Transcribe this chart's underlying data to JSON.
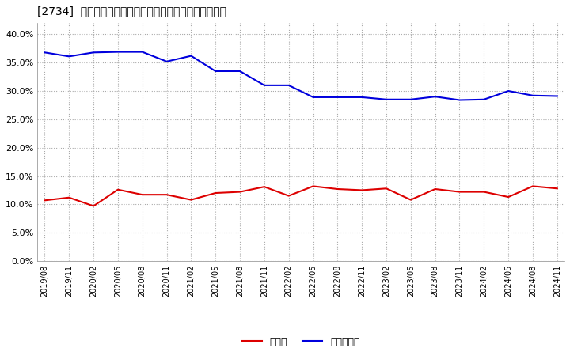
{
  "title": "[2734]  現顔金、有利子負債の総資産に対する比率の推移",
  "legend_labels": [
    "現顔金",
    "有利子負債"
  ],
  "line_colors": [
    "#dd0000",
    "#0000dd"
  ],
  "background_color": "#ffffff",
  "plot_bg_color": "#ffffff",
  "grid_color": "#aaaaaa",
  "dates": [
    "2019/08",
    "2019/11",
    "2020/02",
    "2020/05",
    "2020/08",
    "2020/11",
    "2021/02",
    "2021/05",
    "2021/08",
    "2021/11",
    "2022/02",
    "2022/05",
    "2022/08",
    "2022/11",
    "2023/02",
    "2023/05",
    "2023/08",
    "2023/11",
    "2024/02",
    "2024/05",
    "2024/08",
    "2024/11"
  ],
  "cash": [
    0.107,
    0.112,
    0.097,
    0.126,
    0.117,
    0.117,
    0.108,
    0.12,
    0.122,
    0.131,
    0.115,
    0.132,
    0.127,
    0.125,
    0.128,
    0.108,
    0.127,
    0.122,
    0.122,
    0.113,
    0.132,
    0.128
  ],
  "debt": [
    0.368,
    0.361,
    0.368,
    0.369,
    0.369,
    0.352,
    0.362,
    0.335,
    0.335,
    0.31,
    0.31,
    0.289,
    0.289,
    0.289,
    0.285,
    0.285,
    0.29,
    0.284,
    0.285,
    0.3,
    0.292,
    0.291
  ],
  "ylim": [
    0.0,
    0.42
  ],
  "yticks": [
    0.0,
    0.05,
    0.1,
    0.15,
    0.2,
    0.25,
    0.3,
    0.35,
    0.4
  ]
}
